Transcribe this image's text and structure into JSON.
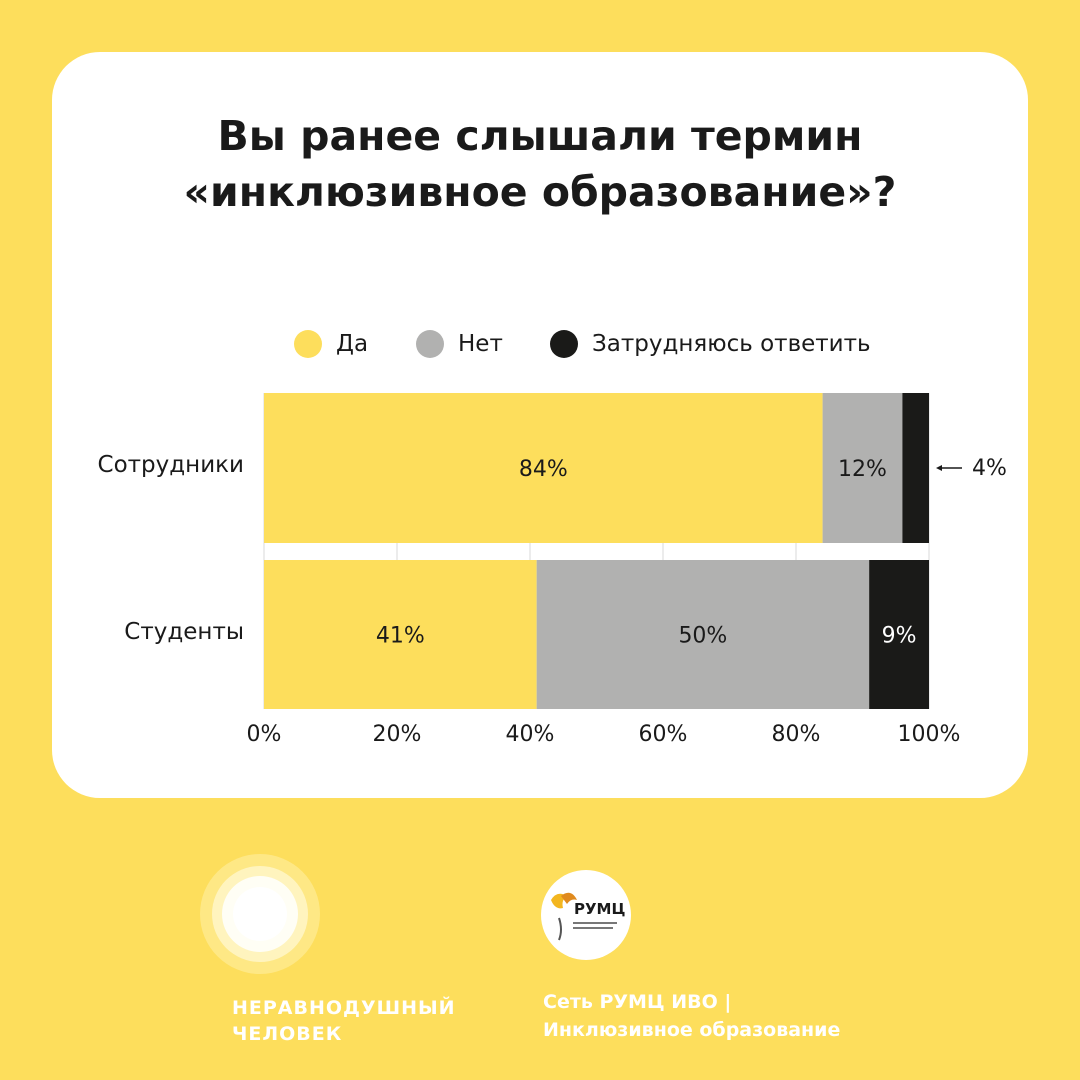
{
  "title": {
    "line1": "Вы ранее слышали термин",
    "line2": "«инклюзивное образование»?"
  },
  "chart_data": {
    "type": "bar",
    "orientation": "horizontal",
    "stacked": true,
    "categories": [
      "Сотрудники",
      "Студенты"
    ],
    "series": [
      {
        "name": "Да",
        "values": [
          84,
          41
        ],
        "labels": [
          "84%",
          "41%"
        ],
        "color": "#FDDE5C",
        "label_color": "#1a1a1a"
      },
      {
        "name": "Нет",
        "values": [
          12,
          50
        ],
        "labels": [
          "12%",
          "50%"
        ],
        "color": "#B1B1B0",
        "label_color": "#1a1a1a"
      },
      {
        "name": "Затрудняюсь ответить",
        "values": [
          4,
          9
        ],
        "labels": [
          "4%",
          "9%"
        ],
        "color": "#1A1A18",
        "label_color": "#ffffff"
      }
    ],
    "xlim": [
      0,
      100
    ],
    "xticks": [
      0,
      20,
      40,
      60,
      80,
      100
    ],
    "xtick_labels": [
      "0%",
      "20%",
      "40%",
      "60%",
      "80%",
      "100%"
    ],
    "grid": true,
    "legend_position": "top",
    "annotation": {
      "text": "4%",
      "category": "Сотрудники",
      "series": "Затрудняюсь ответить"
    }
  },
  "footer": {
    "left_line1": "НЕРАВНОДУШНЫЙ",
    "left_line2": "ЧЕЛОВЕК",
    "rumc_logo_text": "РУМЦ",
    "right_line1": "Сеть РУМЦ ИВО |",
    "right_line2": "Инклюзивное образование"
  }
}
